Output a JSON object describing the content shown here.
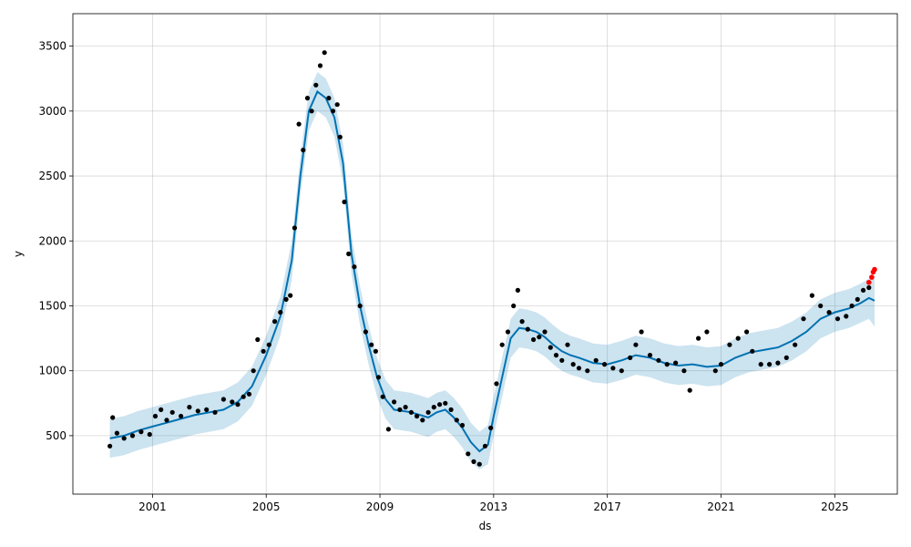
{
  "chart_data": {
    "type": "line",
    "title": "",
    "xlabel": "ds",
    "ylabel": "y",
    "xlim": [
      1998.2,
      2027.2
    ],
    "ylim": [
      50,
      3750
    ],
    "grid": true,
    "x_ticks": [
      2001,
      2005,
      2009,
      2013,
      2017,
      2021,
      2025
    ],
    "y_ticks": [
      500,
      1000,
      1500,
      2000,
      2500,
      3000,
      3500
    ],
    "colors": {
      "observed": "#000000",
      "recent_observed": "#ff0000",
      "forecast_line": "#0072b2",
      "uncertainty_band": "#0072b2"
    },
    "series": [
      {
        "role": "observed",
        "x": [
          1999.5,
          1999.6,
          1999.75,
          2000.0,
          2000.3,
          2000.6,
          2000.9,
          2001.1,
          2001.3,
          2001.5,
          2001.7,
          2002.0,
          2002.3,
          2002.6,
          2002.9,
          2003.2,
          2003.5,
          2003.8,
          2004.0,
          2004.2,
          2004.4,
          2004.55,
          2004.7,
          2004.9,
          2005.1,
          2005.3,
          2005.5,
          2005.7,
          2005.85,
          2006.0,
          2006.15,
          2006.3,
          2006.45,
          2006.6,
          2006.75,
          2006.9,
          2007.05,
          2007.2,
          2007.35,
          2007.5,
          2007.6,
          2007.75,
          2007.9,
          2008.1,
          2008.3,
          2008.5,
          2008.7,
          2008.85,
          2008.95,
          2009.1,
          2009.3,
          2009.5,
          2009.7,
          2009.9,
          2010.1,
          2010.3,
          2010.5,
          2010.7,
          2010.9,
          2011.1,
          2011.3,
          2011.5,
          2011.7,
          2011.9,
          2012.1,
          2012.3,
          2012.5,
          2012.7,
          2012.9,
          2013.1,
          2013.3,
          2013.5,
          2013.7,
          2013.85,
          2014.0,
          2014.2,
          2014.4,
          2014.6,
          2014.8,
          2015.0,
          2015.2,
          2015.4,
          2015.6,
          2015.8,
          2016.0,
          2016.3,
          2016.6,
          2016.9,
          2017.2,
          2017.5,
          2017.8,
          2018.0,
          2018.2,
          2018.5,
          2018.8,
          2019.1,
          2019.4,
          2019.7,
          2019.9,
          2020.2,
          2020.5,
          2020.8,
          2021.0,
          2021.3,
          2021.6,
          2021.9,
          2022.1,
          2022.4,
          2022.7,
          2023.0,
          2023.3,
          2023.6,
          2023.9,
          2024.2,
          2024.5,
          2024.8,
          2025.1,
          2025.4,
          2025.6,
          2025.8,
          2026.0,
          2026.2
        ],
        "y": [
          420,
          640,
          520,
          480,
          500,
          530,
          510,
          650,
          700,
          620,
          680,
          650,
          720,
          690,
          700,
          680,
          780,
          760,
          740,
          800,
          820,
          1000,
          1240,
          1150,
          1200,
          1380,
          1450,
          1550,
          1580,
          2100,
          2900,
          2700,
          3100,
          3000,
          3200,
          3350,
          3450,
          3100,
          3000,
          3050,
          2800,
          2300,
          1900,
          1800,
          1500,
          1300,
          1200,
          1150,
          950,
          800,
          550,
          760,
          700,
          720,
          680,
          650,
          620,
          680,
          720,
          740,
          750,
          700,
          620,
          580,
          360,
          300,
          280,
          420,
          560,
          900,
          1200,
          1300,
          1500,
          1620,
          1380,
          1320,
          1240,
          1260,
          1300,
          1180,
          1120,
          1080,
          1200,
          1050,
          1020,
          1000,
          1080,
          1050,
          1020,
          1000,
          1100,
          1200,
          1300,
          1120,
          1080,
          1050,
          1060,
          1000,
          850,
          1250,
          1300,
          1000,
          1050,
          1200,
          1250,
          1300,
          1150,
          1050,
          1050,
          1060,
          1100,
          1200,
          1400,
          1580,
          1500,
          1450,
          1400,
          1420,
          1500,
          1550,
          1620,
          1640
        ]
      },
      {
        "role": "recent_observed",
        "x": [
          2026.2,
          2026.3,
          2026.35,
          2026.4
        ],
        "y": [
          1680,
          1720,
          1760,
          1780
        ]
      },
      {
        "role": "forecast",
        "x": [
          1999.5,
          2000.0,
          2000.5,
          2001.0,
          2001.5,
          2002.0,
          2002.5,
          2003.0,
          2003.5,
          2004.0,
          2004.5,
          2005.0,
          2005.5,
          2005.9,
          2006.2,
          2006.5,
          2006.8,
          2007.1,
          2007.4,
          2007.7,
          2008.0,
          2008.3,
          2008.6,
          2008.9,
          2009.2,
          2009.5,
          2009.8,
          2010.1,
          2010.4,
          2010.7,
          2011.0,
          2011.3,
          2011.6,
          2011.9,
          2012.2,
          2012.5,
          2012.8,
          2013.0,
          2013.3,
          2013.6,
          2013.9,
          2014.2,
          2014.5,
          2014.8,
          2015.1,
          2015.4,
          2015.7,
          2016.0,
          2016.5,
          2017.0,
          2017.5,
          2018.0,
          2018.5,
          2019.0,
          2019.5,
          2020.0,
          2020.5,
          2021.0,
          2021.5,
          2022.0,
          2022.5,
          2023.0,
          2023.5,
          2024.0,
          2024.5,
          2025.0,
          2025.5,
          2025.9,
          2026.2,
          2026.4
        ],
        "y": [
          480,
          500,
          540,
          570,
          600,
          630,
          660,
          680,
          700,
          760,
          880,
          1120,
          1420,
          1850,
          2500,
          3000,
          3150,
          3100,
          2950,
          2600,
          1900,
          1500,
          1200,
          950,
          780,
          700,
          690,
          680,
          660,
          640,
          680,
          700,
          640,
          560,
          450,
          380,
          430,
          650,
          950,
          1250,
          1330,
          1320,
          1300,
          1260,
          1200,
          1150,
          1120,
          1100,
          1060,
          1050,
          1080,
          1120,
          1100,
          1060,
          1040,
          1050,
          1030,
          1040,
          1100,
          1140,
          1160,
          1180,
          1230,
          1300,
          1400,
          1450,
          1480,
          1520,
          1560,
          1540
        ]
      },
      {
        "role": "uncertainty_band",
        "x": [
          1999.5,
          2000.0,
          2000.5,
          2001.0,
          2001.5,
          2002.0,
          2002.5,
          2003.0,
          2003.5,
          2004.0,
          2004.5,
          2005.0,
          2005.5,
          2005.9,
          2006.2,
          2006.5,
          2006.8,
          2007.1,
          2007.4,
          2007.7,
          2008.0,
          2008.3,
          2008.6,
          2008.9,
          2009.2,
          2009.5,
          2009.8,
          2010.1,
          2010.4,
          2010.7,
          2011.0,
          2011.3,
          2011.6,
          2011.9,
          2012.2,
          2012.5,
          2012.8,
          2013.0,
          2013.3,
          2013.6,
          2013.9,
          2014.2,
          2014.5,
          2014.8,
          2015.1,
          2015.4,
          2015.7,
          2016.0,
          2016.5,
          2017.0,
          2017.5,
          2018.0,
          2018.5,
          2019.0,
          2019.5,
          2020.0,
          2020.5,
          2021.0,
          2021.5,
          2022.0,
          2022.5,
          2023.0,
          2023.5,
          2024.0,
          2024.5,
          2025.0,
          2025.5,
          2025.9,
          2026.2,
          2026.4
        ],
        "lower": [
          330,
          350,
          390,
          420,
          450,
          480,
          510,
          530,
          550,
          610,
          730,
          970,
          1270,
          1700,
          2350,
          2850,
          3000,
          2950,
          2800,
          2450,
          1750,
          1350,
          1050,
          800,
          630,
          550,
          540,
          530,
          510,
          490,
          530,
          550,
          490,
          410,
          300,
          240,
          280,
          500,
          800,
          1100,
          1180,
          1170,
          1150,
          1110,
          1050,
          1000,
          970,
          950,
          910,
          900,
          930,
          970,
          950,
          910,
          890,
          900,
          880,
          890,
          950,
          990,
          1010,
          1030,
          1080,
          1150,
          1250,
          1300,
          1330,
          1370,
          1400,
          1340
        ],
        "upper": [
          630,
          650,
          690,
          720,
          750,
          780,
          810,
          830,
          850,
          910,
          1030,
          1270,
          1570,
          2000,
          2650,
          3150,
          3300,
          3250,
          3100,
          2750,
          2050,
          1650,
          1350,
          1100,
          930,
          850,
          840,
          830,
          810,
          790,
          830,
          850,
          790,
          710,
          600,
          530,
          580,
          800,
          1100,
          1400,
          1480,
          1470,
          1450,
          1410,
          1350,
          1300,
          1270,
          1250,
          1210,
          1200,
          1230,
          1270,
          1250,
          1210,
          1190,
          1200,
          1180,
          1190,
          1250,
          1290,
          1310,
          1330,
          1380,
          1450,
          1550,
          1600,
          1630,
          1670,
          1710,
          1720
        ]
      }
    ]
  }
}
